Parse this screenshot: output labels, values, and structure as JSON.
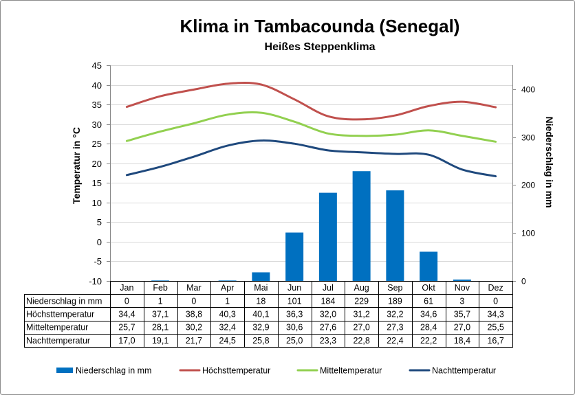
{
  "chart_data": {
    "type": "bar",
    "title": "Klima in Tambacounda (Senegal)",
    "subtitle": "Heißes Steppenklima",
    "categories": [
      "Jan",
      "Feb",
      "Mar",
      "Apr",
      "Mai",
      "Jun",
      "Jul",
      "Aug",
      "Sep",
      "Okt",
      "Nov",
      "Dez"
    ],
    "y_left": {
      "label": "Temperatur in °C",
      "ylim": [
        -10,
        45
      ],
      "ticks": [
        -10,
        -5,
        0,
        5,
        10,
        15,
        20,
        25,
        30,
        35,
        40,
        45
      ]
    },
    "y_right": {
      "label": "Niederschlag in mm",
      "ylim": [
        0,
        450
      ],
      "ticks": [
        0,
        100,
        200,
        300,
        400
      ]
    },
    "grid": true,
    "legend": "bottom",
    "series": [
      {
        "name": "Niederschlag in mm",
        "type": "bar",
        "axis": "right",
        "color": "#0070C0",
        "values": [
          0,
          1,
          0,
          1,
          18,
          101,
          184,
          229,
          189,
          61,
          3,
          0
        ]
      },
      {
        "name": "Höchsttemperatur",
        "type": "line",
        "axis": "left",
        "color": "#C0504D",
        "values": [
          34.4,
          37.1,
          38.8,
          40.3,
          40.1,
          36.3,
          32.0,
          31.2,
          32.2,
          34.6,
          35.7,
          34.3
        ]
      },
      {
        "name": "Mitteltemperatur",
        "type": "line",
        "axis": "left",
        "color": "#92D050",
        "values": [
          25.7,
          28.1,
          30.2,
          32.4,
          32.9,
          30.6,
          27.6,
          27.0,
          27.3,
          28.4,
          27.0,
          25.5
        ]
      },
      {
        "name": "Nachttemperatur",
        "type": "line",
        "axis": "left",
        "color": "#1F497D",
        "values": [
          17.0,
          19.1,
          21.7,
          24.5,
          25.8,
          25.0,
          23.3,
          22.8,
          22.4,
          22.2,
          18.4,
          16.7
        ]
      }
    ]
  }
}
